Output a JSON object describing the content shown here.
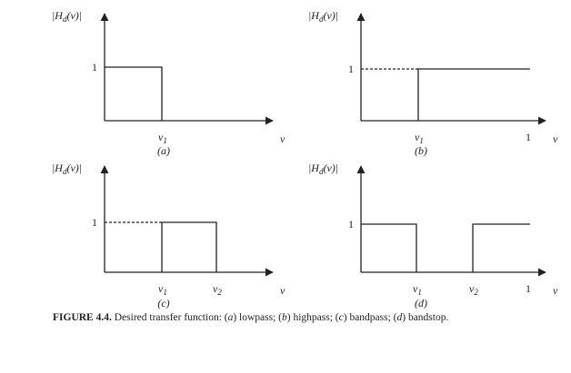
{
  "panels": [
    {
      "y_label": {
        "main": "|H",
        "sub": "d",
        "tail": "(ν)|"
      },
      "y_tick": "1",
      "x_ticks": [
        {
          "base": "ν",
          "sub": "1"
        }
      ],
      "x_axis": "ν",
      "label": "(a)"
    },
    {
      "y_label": {
        "main": "|H",
        "sub": "d",
        "tail": "(ν)|"
      },
      "y_tick": "1",
      "x_ticks": [
        {
          "base": "ν",
          "sub": "1"
        },
        {
          "base": "1"
        }
      ],
      "x_axis": "ν",
      "label": "(b)"
    },
    {
      "y_label": {
        "main": "|H",
        "sub": "d",
        "tail": "(ν)|"
      },
      "y_tick": "1",
      "x_ticks": [
        {
          "base": "ν",
          "sub": "1"
        },
        {
          "base": "ν",
          "sub": "2"
        }
      ],
      "x_axis": "ν",
      "label": "(c)"
    },
    {
      "y_label": {
        "main": "|H",
        "sub": "d",
        "tail": "(ν)|"
      },
      "y_tick": "1",
      "x_ticks": [
        {
          "base": "ν",
          "sub": "1"
        },
        {
          "base": "ν",
          "sub": "2"
        },
        {
          "base": "1"
        }
      ],
      "x_axis": "ν",
      "label": "(d)"
    }
  ],
  "caption": {
    "parts": [
      {
        "text": "FIGURE 4.4.",
        "style": "bold"
      },
      {
        "text": " Desired transfer function: (",
        "style": "normal"
      },
      {
        "text": "a",
        "style": "italic"
      },
      {
        "text": ") lowpass; (",
        "style": "normal"
      },
      {
        "text": "b",
        "style": "italic"
      },
      {
        "text": ") highpass; (",
        "style": "normal"
      },
      {
        "text": "c",
        "style": "italic"
      },
      {
        "text": ") bandpass; (",
        "style": "normal"
      },
      {
        "text": "d",
        "style": "italic"
      },
      {
        "text": ") bandstop.",
        "style": "normal"
      }
    ]
  }
}
